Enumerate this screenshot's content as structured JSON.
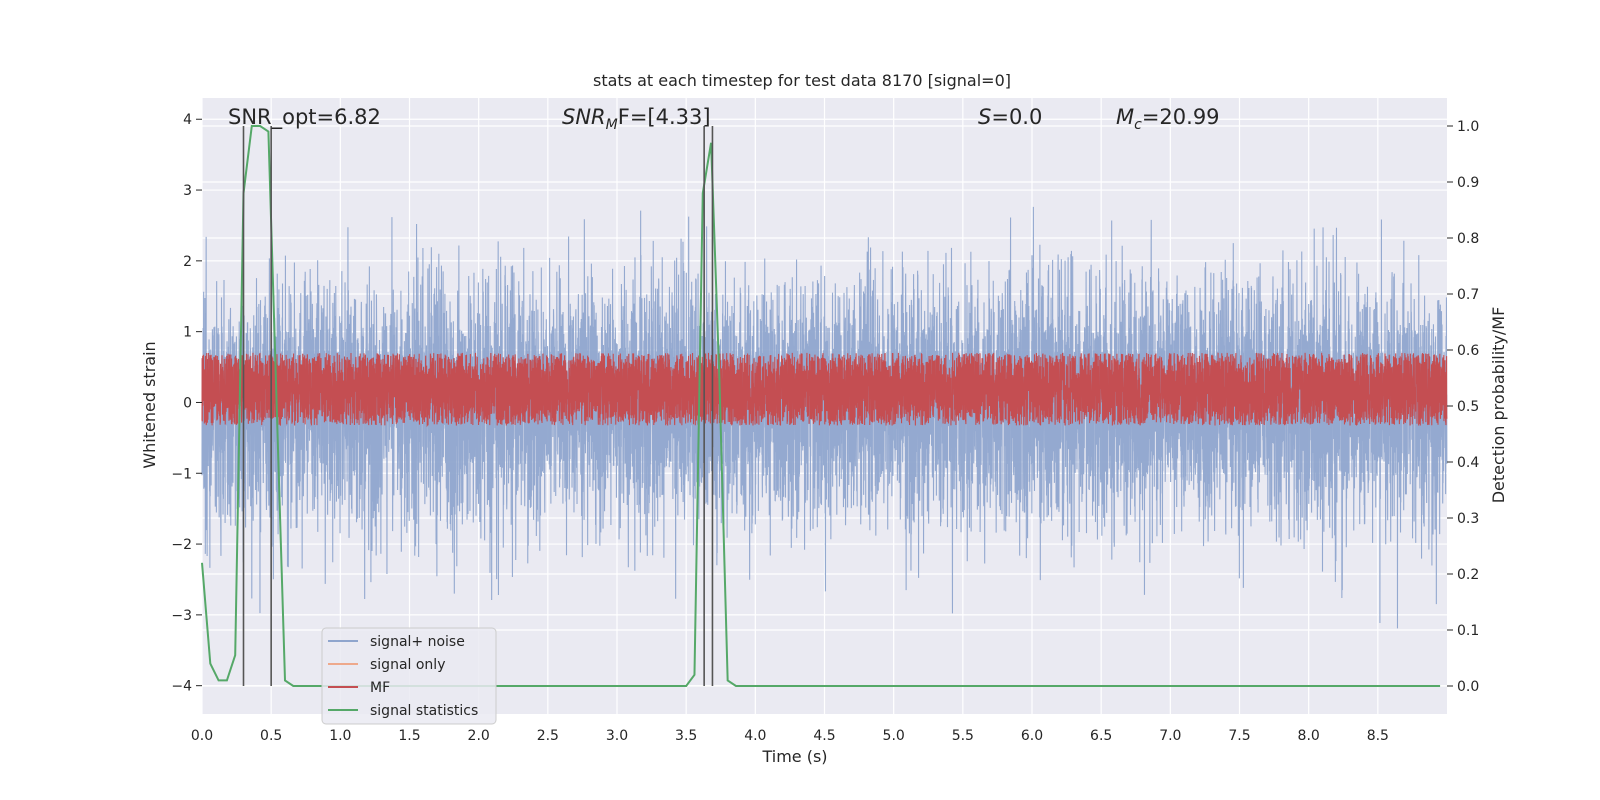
{
  "chart_data": {
    "type": "line",
    "title": "stats at each timestep for test data 8170 [signal=0]",
    "xlabel": "Time (s)",
    "ylabel": "Whitened strain",
    "y2label": "Detection probability/MF",
    "xlim": [
      0.0,
      9.0
    ],
    "ylim": [
      -4.4,
      4.3
    ],
    "y2lim": [
      -0.05,
      1.05
    ],
    "xticks": [
      0.0,
      0.5,
      1.0,
      1.5,
      2.0,
      2.5,
      3.0,
      3.5,
      4.0,
      4.5,
      5.0,
      5.5,
      6.0,
      6.5,
      7.0,
      7.5,
      8.0,
      8.5
    ],
    "xtick_labels": [
      "0.0",
      "0.5",
      "1.0",
      "1.5",
      "2.0",
      "2.5",
      "3.0",
      "3.5",
      "4.0",
      "4.5",
      "5.0",
      "5.5",
      "6.0",
      "6.5",
      "7.0",
      "7.5",
      "8.0",
      "8.5"
    ],
    "yticks": [
      -4,
      -3,
      -2,
      -1,
      0,
      1,
      2,
      3,
      4
    ],
    "ytick_labels": [
      "−4",
      "−3",
      "−2",
      "−1",
      "0",
      "1",
      "2",
      "3",
      "4"
    ],
    "y2ticks": [
      0.0,
      0.1,
      0.2,
      0.3,
      0.4,
      0.5,
      0.6,
      0.7,
      0.8,
      0.9,
      1.0
    ],
    "y2tick_labels": [
      "0.0",
      "0.1",
      "0.2",
      "0.3",
      "0.4",
      "0.5",
      "0.6",
      "0.7",
      "0.8",
      "0.9",
      "1.0"
    ],
    "grid": true,
    "legend_position": "lower-left",
    "annotations": {
      "snr_opt": "SNR_opt=6.82",
      "snr_mf_main": "SNR",
      "snr_mf_sub": "M",
      "snr_mf_rest": "F=[4.33]",
      "s_var": "S",
      "s_rest": "=0.0",
      "mc_main": "M",
      "mc_sub": "c",
      "mc_rest": "=20.99"
    },
    "series": [
      {
        "name": "signal+ noise",
        "color": "#8fa5cd",
        "axis": "left",
        "kind": "noise",
        "sample_rate": 1000,
        "std": 0.85,
        "range": [
          -3.2,
          3.9
        ]
      },
      {
        "name": "signal only",
        "color": "#eea98c",
        "axis": "left",
        "values": []
      },
      {
        "name": "MF",
        "color": "#c44e52",
        "axis": "right",
        "kind": "noise",
        "sample_rate": 1000,
        "mean": 0.53,
        "range": [
          0.5,
          0.63
        ]
      },
      {
        "name": "signal statistics",
        "color": "#55a868",
        "axis": "right",
        "x": [
          0.0,
          0.06,
          0.12,
          0.18,
          0.24,
          0.3,
          0.36,
          0.42,
          0.48,
          0.54,
          0.6,
          0.66,
          0.72,
          3.5,
          3.56,
          3.62,
          3.68,
          3.74,
          3.8,
          3.86,
          3.92,
          8.95
        ],
        "y": [
          0.22,
          0.04,
          0.01,
          0.01,
          0.055,
          0.88,
          1.0,
          1.0,
          0.99,
          0.5,
          0.01,
          0.0,
          0.0,
          0.0,
          0.02,
          0.88,
          0.97,
          0.55,
          0.01,
          0.0,
          0.0,
          0.0
        ]
      }
    ],
    "vertical_lines": [
      0.3,
      0.5,
      3.63,
      3.69
    ],
    "vertical_line_color": "#555555"
  }
}
